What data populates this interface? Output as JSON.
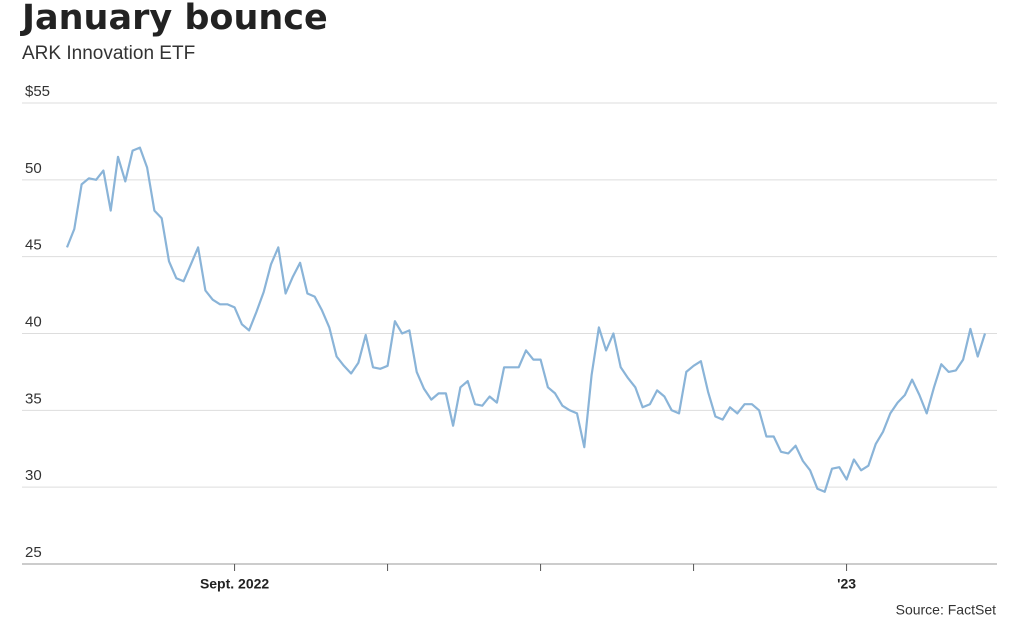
{
  "chart_data": {
    "type": "line",
    "title": "January bounce",
    "subtitle": "ARK Innovation ETF",
    "source": "Source: FactSet",
    "color": "#8ab4d8",
    "grid": true,
    "categories": [
      null,
      null,
      null,
      null,
      null,
      null,
      null,
      null,
      null,
      null,
      null,
      null,
      null,
      null,
      null,
      null,
      null,
      null,
      null,
      null,
      null,
      null,
      null,
      "Sept. 2022",
      null,
      null,
      null,
      null,
      null,
      null,
      null,
      null,
      null,
      null,
      null,
      null,
      null,
      null,
      null,
      null,
      null,
      null,
      null,
      null,
      null,
      null,
      null,
      null,
      null,
      null,
      null,
      null,
      null,
      null,
      null,
      null,
      null,
      null,
      null,
      null,
      null,
      null,
      null,
      null,
      null,
      null,
      null,
      null,
      null,
      null,
      null,
      null,
      null,
      null,
      null,
      null,
      null,
      null,
      null,
      null,
      null,
      null,
      null,
      null,
      null,
      null,
      null,
      null,
      null,
      null,
      null,
      null,
      null,
      null,
      null,
      null,
      null,
      null,
      null,
      null,
      null,
      null,
      null,
      null,
      null,
      null,
      null,
      "'23",
      null,
      null,
      null,
      null,
      null,
      null,
      null,
      null,
      null,
      null,
      null,
      null,
      null,
      null,
      null,
      null,
      null,
      null,
      null
    ],
    "xticks": [
      23,
      44,
      65,
      86,
      107
    ],
    "values": [
      45.6,
      46.8,
      49.7,
      50.1,
      50.0,
      50.6,
      48.0,
      51.5,
      49.9,
      51.9,
      52.1,
      50.8,
      48.0,
      47.5,
      44.7,
      43.6,
      43.4,
      44.5,
      45.6,
      42.8,
      42.2,
      41.9,
      41.9,
      41.7,
      40.6,
      40.2,
      41.4,
      42.7,
      44.5,
      45.6,
      42.6,
      43.7,
      44.6,
      42.6,
      42.4,
      41.5,
      40.4,
      38.5,
      37.9,
      37.4,
      38.1,
      39.9,
      37.8,
      37.7,
      37.9,
      40.8,
      40.0,
      40.2,
      37.5,
      36.4,
      35.7,
      36.1,
      36.1,
      34.0,
      36.5,
      36.9,
      35.4,
      35.3,
      35.9,
      35.5,
      37.8,
      37.8,
      37.8,
      38.9,
      38.3,
      38.3,
      36.5,
      36.1,
      35.3,
      35.0,
      34.8,
      32.6,
      37.3,
      40.4,
      38.9,
      40.0,
      37.8,
      37.1,
      36.5,
      35.2,
      35.4,
      36.3,
      35.9,
      35.0,
      34.8,
      37.5,
      37.9,
      38.2,
      36.2,
      34.6,
      34.4,
      35.2,
      34.8,
      35.4,
      35.4,
      35.0,
      33.3,
      33.3,
      32.3,
      32.2,
      32.7,
      31.7,
      31.1,
      29.9,
      29.7,
      31.2,
      31.3,
      30.5,
      31.8,
      31.1,
      31.4,
      32.8,
      33.6,
      34.8,
      35.5,
      36.0,
      37.0,
      36.0,
      34.8,
      36.5,
      38.0,
      37.5,
      37.6,
      38.3,
      40.3,
      38.5,
      40.0
    ],
    "ylim": [
      25,
      55
    ],
    "yticks": [
      25,
      30,
      35,
      40,
      45,
      50,
      {
        "value": 55,
        "label": "$55"
      }
    ]
  }
}
